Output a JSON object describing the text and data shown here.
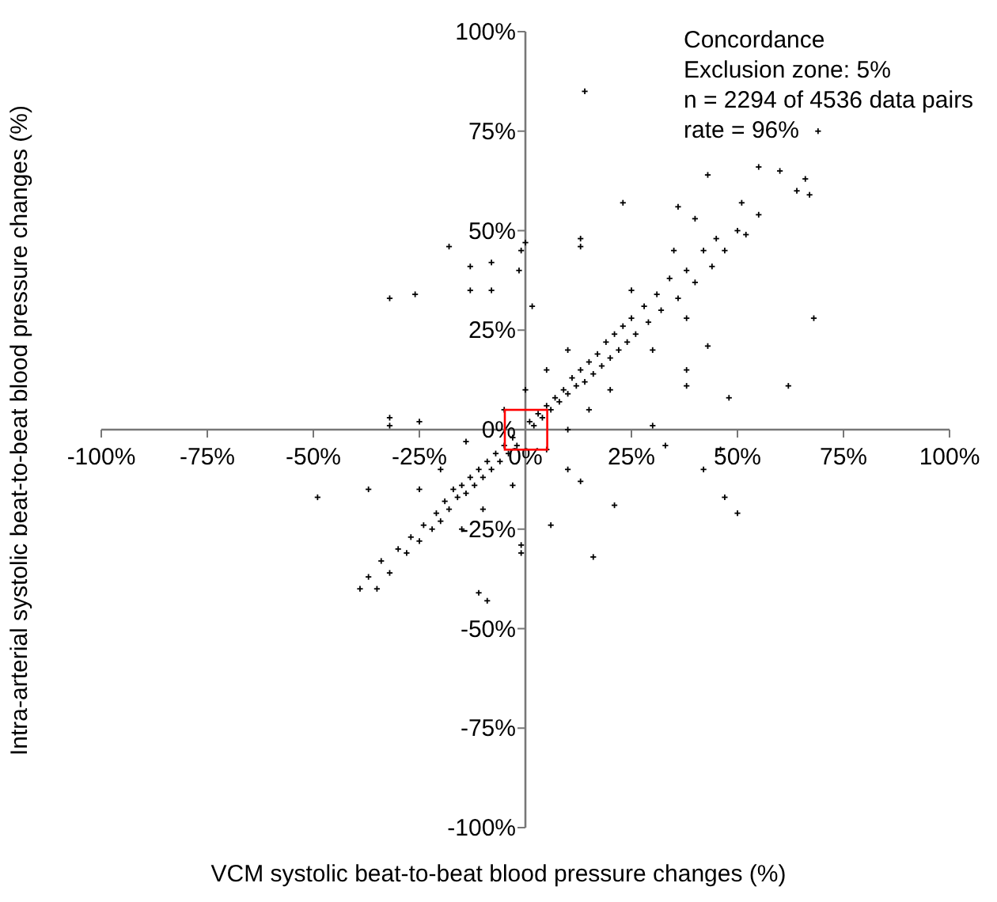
{
  "chart_data": {
    "type": "scatter",
    "xlabel": "VCM systolic beat-to-beat blood pressure changes (%)",
    "ylabel": "Intra-arterial systolic beat-to-beat blood pressure changes (%)",
    "annotations": [
      "Concordance",
      "Exclusion zone: 5%",
      "n = 2294 of 4536 data pairs",
      "rate = 96%"
    ],
    "xlim": [
      -100,
      100
    ],
    "ylim": [
      -100,
      100
    ],
    "xticks": [
      {
        "value": -100,
        "label": "-100%"
      },
      {
        "value": -75,
        "label": "-75%"
      },
      {
        "value": -50,
        "label": "-50%"
      },
      {
        "value": -25,
        "label": "-25%"
      },
      {
        "value": 0,
        "label": "0%"
      },
      {
        "value": 25,
        "label": "25%"
      },
      {
        "value": 50,
        "label": "50%"
      },
      {
        "value": 75,
        "label": "75%"
      },
      {
        "value": 100,
        "label": "100%"
      }
    ],
    "yticks": [
      {
        "value": -100,
        "label": "-100%"
      },
      {
        "value": -75,
        "label": "-75%"
      },
      {
        "value": -50,
        "label": "-50%"
      },
      {
        "value": -25,
        "label": "-25%"
      },
      {
        "value": 0,
        "label": "0%"
      },
      {
        "value": 25,
        "label": "25%"
      },
      {
        "value": 50,
        "label": "50%"
      },
      {
        "value": 75,
        "label": "75%"
      },
      {
        "value": 100,
        "label": "100%"
      }
    ],
    "marker": "cross",
    "grid": false,
    "legend": false,
    "series": [
      {
        "color": "#000000",
        "x": [
          14,
          69,
          55,
          60,
          66,
          67,
          64,
          43,
          23,
          36,
          51,
          55,
          40,
          13,
          13,
          0,
          -1,
          -18,
          -32,
          -26,
          -13,
          -8,
          -1.5,
          -13,
          -8,
          1.6,
          68,
          43,
          62,
          48,
          38,
          38,
          30,
          -32,
          -32,
          -25,
          -49,
          -37,
          47,
          50,
          21,
          16,
          6,
          -1,
          -1,
          -11,
          -9,
          -39,
          -35,
          42,
          46,
          33,
          10,
          13,
          -37,
          -34,
          -32,
          -30,
          -28,
          -27,
          -25,
          -24,
          -22,
          -21,
          -20,
          -19,
          -18,
          -17,
          -16,
          -15,
          -14,
          -13,
          -12,
          -11,
          -10,
          -9,
          -8,
          -7,
          -6,
          -5,
          -4,
          -3,
          -2,
          1,
          2,
          3,
          4,
          5,
          6,
          7,
          8,
          9,
          10,
          11,
          12,
          13,
          14,
          15,
          16,
          17,
          18,
          19,
          20,
          21,
          22,
          23,
          24,
          25,
          26,
          28,
          29,
          31,
          32,
          34,
          36,
          38,
          40,
          42,
          44,
          45,
          47,
          50,
          52,
          -20,
          -10,
          5,
          15,
          10,
          20,
          -5,
          5,
          25,
          30,
          -25,
          -15,
          35,
          38,
          0,
          10,
          -3,
          -14
        ],
        "values": [
          85,
          75,
          66,
          65,
          63,
          59,
          60,
          64,
          57,
          56,
          57,
          54,
          53,
          48,
          46,
          47,
          45,
          46,
          33,
          34,
          41,
          42,
          40,
          35,
          35,
          31,
          28,
          21,
          11,
          8,
          11,
          15,
          1,
          3,
          1,
          2,
          -17,
          -15,
          -17,
          -21,
          -19,
          -32,
          -24,
          -29,
          -31,
          -41,
          -43,
          -40,
          -40,
          -10,
          -5,
          -4,
          -10,
          -13,
          -37,
          -33,
          -36,
          -30,
          -31,
          -27,
          -28,
          -24,
          -25,
          -21,
          -23,
          -18,
          -20,
          -15,
          -17,
          -14,
          -16,
          -12,
          -14,
          -10,
          -12,
          -8,
          -10,
          -6,
          -8,
          -4,
          -6,
          -2,
          -4,
          2,
          1,
          4,
          3,
          6,
          5,
          8,
          7,
          10,
          9,
          13,
          11,
          15,
          12,
          17,
          14,
          19,
          16,
          22,
          18,
          24,
          20,
          26,
          22,
          28,
          24,
          31,
          27,
          34,
          30,
          38,
          33,
          40,
          37,
          45,
          41,
          48,
          45,
          50,
          49,
          -10,
          -20,
          15,
          5,
          20,
          10,
          5,
          -5,
          35,
          20,
          -15,
          -25,
          45,
          28,
          10,
          0,
          -14,
          -3
        ]
      }
    ]
  }
}
